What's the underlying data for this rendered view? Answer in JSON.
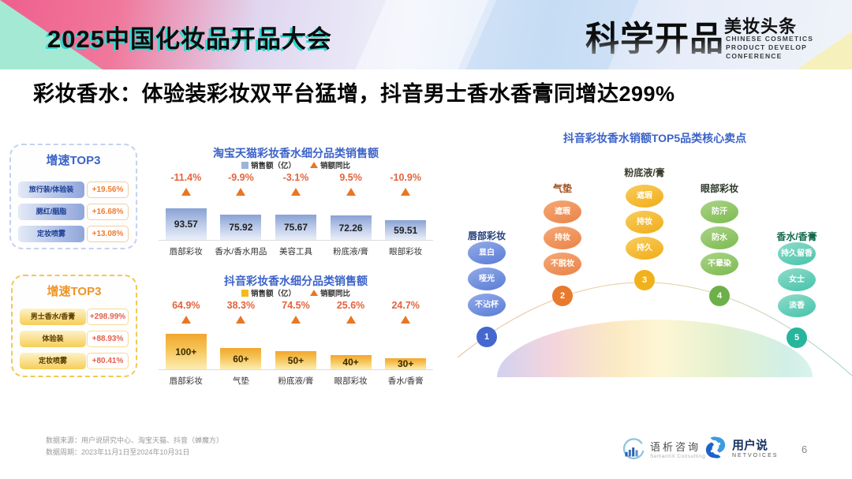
{
  "header": {
    "title": "2025中国化妆品开品大会",
    "logo_main": "科学开品",
    "logo_brand": "美妆头条",
    "logo_sub1": "CHINESE COSMETICS",
    "logo_sub2": "PRODUCT DEVELOP",
    "logo_sub3": "CONFERENCE"
  },
  "headline": "彩妆香水：体验装彩妆双平台猛增，抖音男士香水香膏同增达299%",
  "growth_boxes": [
    {
      "title": "增速TOP3",
      "items": [
        {
          "label": "旅行装/体验装",
          "value": "+19.56%"
        },
        {
          "label": "腮红/胭脂",
          "value": "+16.68%"
        },
        {
          "label": "定妆喷雾",
          "value": "+13.08%"
        }
      ]
    },
    {
      "title": "增速TOP3",
      "items": [
        {
          "label": "男士香水/香膏",
          "value": "+298.99%"
        },
        {
          "label": "体验装",
          "value": "+88.93%"
        },
        {
          "label": "定妆喷雾",
          "value": "+80.41%"
        }
      ]
    }
  ],
  "chart_data": [
    {
      "type": "bar",
      "title": "淘宝天猫彩妆香水细分品类销售额",
      "legend": [
        "销售额（亿）",
        "销额同比"
      ],
      "categories": [
        "唇部彩妆",
        "香水/香水用品",
        "美容工具",
        "粉底液/膏",
        "眼部彩妆"
      ],
      "values": [
        93.57,
        75.92,
        75.67,
        72.26,
        59.51
      ],
      "value_labels": [
        "93.57",
        "75.92",
        "75.67",
        "72.26",
        "59.51"
      ],
      "yoy": [
        "-11.4%",
        "-9.9%",
        "-3.1%",
        "9.5%",
        "-10.9%"
      ],
      "ylabel": "销售额（亿）",
      "grid": false,
      "legend_position": "top"
    },
    {
      "type": "bar",
      "title": "抖音彩妆香水细分品类销售额",
      "legend": [
        "销售额（亿）",
        "销额同比"
      ],
      "categories": [
        "唇部彩妆",
        "气垫",
        "粉底液/膏",
        "眼部彩妆",
        "香水/香膏"
      ],
      "values": [
        100,
        60,
        50,
        40,
        30
      ],
      "value_labels": [
        "100+",
        "60+",
        "50+",
        "40+",
        "30+"
      ],
      "yoy": [
        "64.9%",
        "38.3%",
        "74.5%",
        "25.6%",
        "24.7%"
      ],
      "ylabel": "销售额（亿）",
      "grid": false,
      "legend_position": "top"
    }
  ],
  "top5": {
    "title": "抖音彩妆香水销额TOP5品类核心卖点",
    "columns": [
      {
        "rank": "1",
        "label": "唇部彩妆",
        "bubbles": [
          "显白",
          "哑光",
          "不沾杯"
        ]
      },
      {
        "rank": "2",
        "label": "气垫",
        "bubbles": [
          "遮瑕",
          "持妆",
          "不脱妆"
        ]
      },
      {
        "rank": "3",
        "label": "粉底液/膏",
        "bubbles": [
          "遮瑕",
          "持妆",
          "持久"
        ]
      },
      {
        "rank": "4",
        "label": "眼部彩妆",
        "bubbles": [
          "防汗",
          "防水",
          "不晕染"
        ]
      },
      {
        "rank": "5",
        "label": "香水/香膏",
        "bubbles": [
          "持久留香",
          "女士",
          "淡香"
        ]
      }
    ]
  },
  "footer": {
    "source": "数据来源：用户说研究中心、淘宝天猫、抖音（蝉魔方）",
    "period": "数据周期：2023年11月1日至2024年10月31日",
    "logo1_cn": "语析咨询",
    "logo1_en": "SemantiX Consulting",
    "logo2_cn": "用户说",
    "logo2_en": "NETVOICES",
    "page": "6"
  },
  "colors": {
    "brand_blue": "#3c63c8",
    "accent_orange": "#e87722",
    "pct_orange": "#e2643c",
    "bar_blue_top": "#88a2d4",
    "bar_yellow_top": "#f1a72e",
    "header_shadow_cyan": "#35d8d0",
    "bubble_palette": [
      "#5a7cd6",
      "#ea8448",
      "#f1ac18",
      "#7cba4e",
      "#45c3ab"
    ]
  }
}
